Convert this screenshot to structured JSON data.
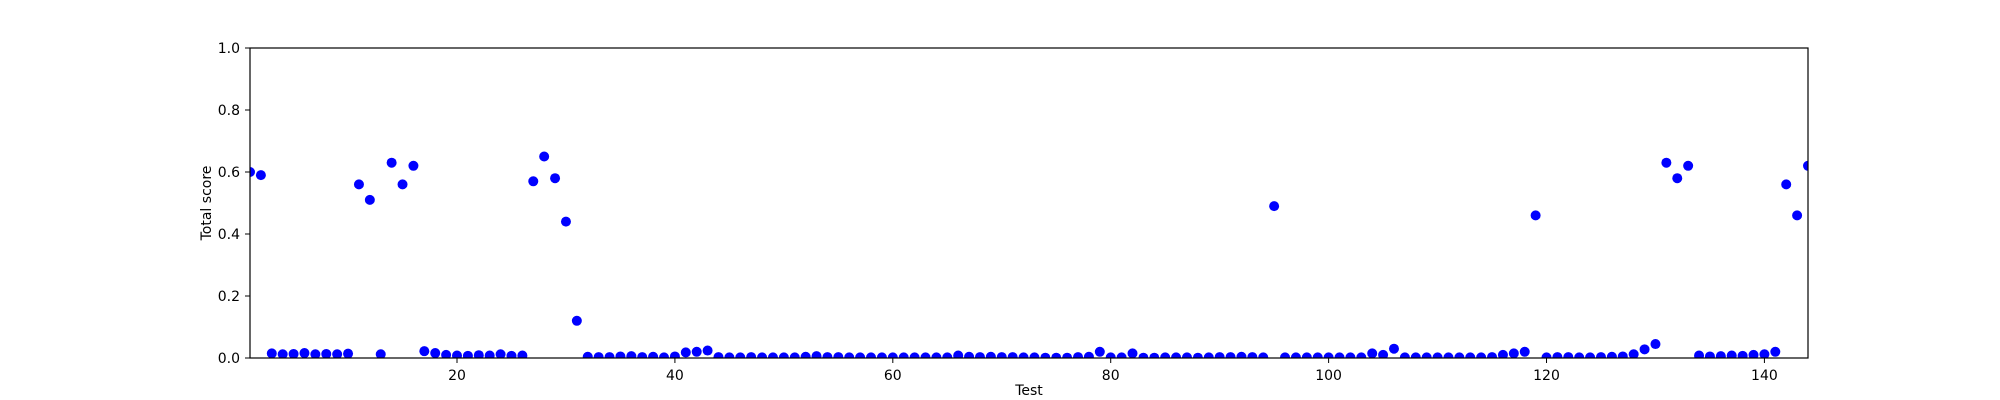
{
  "chart_data": {
    "type": "scatter",
    "title": "",
    "xlabel": "Test",
    "ylabel": "Total score",
    "xlim": [
      1,
      144
    ],
    "ylim": [
      0.0,
      1.0
    ],
    "x_ticks": [
      20,
      40,
      60,
      80,
      100,
      120,
      140
    ],
    "y_ticks": [
      0.0,
      0.2,
      0.4,
      0.6,
      0.8,
      1.0
    ],
    "y_tick_labels": [
      "0.0",
      "0.2",
      "0.4",
      "0.6",
      "0.8",
      "1.0"
    ],
    "grid": false,
    "legend": "none",
    "marker_color": "#0000ff",
    "series": [
      {
        "x": [
          1,
          2,
          3,
          4,
          5,
          6,
          7,
          8,
          9,
          10,
          11,
          12,
          13,
          14,
          15,
          16,
          17,
          18,
          19,
          20,
          21,
          22,
          23,
          24,
          25,
          26,
          27,
          28,
          29,
          30,
          31,
          32,
          33,
          34,
          35,
          36,
          37,
          38,
          39,
          40,
          41,
          42,
          43,
          44,
          45,
          46,
          47,
          48,
          49,
          50,
          51,
          52,
          53,
          54,
          55,
          56,
          57,
          58,
          59,
          60,
          61,
          62,
          63,
          64,
          65,
          66,
          67,
          68,
          69,
          70,
          71,
          72,
          73,
          74,
          75,
          76,
          77,
          78,
          79,
          80,
          81,
          82,
          83,
          84,
          85,
          86,
          87,
          88,
          89,
          90,
          91,
          92,
          93,
          94,
          95,
          96,
          97,
          98,
          99,
          100,
          101,
          102,
          103,
          104,
          105,
          106,
          107,
          108,
          109,
          110,
          111,
          112,
          113,
          114,
          115,
          116,
          117,
          118,
          119,
          120,
          121,
          122,
          123,
          124,
          125,
          126,
          127,
          128,
          129,
          130,
          131,
          132,
          133,
          134,
          135,
          136,
          137,
          138,
          139,
          140,
          141,
          142,
          143,
          144
        ],
        "y": [
          0.6,
          0.59,
          0.015,
          0.012,
          0.013,
          0.016,
          0.012,
          0.013,
          0.012,
          0.014,
          0.56,
          0.51,
          0.012,
          0.63,
          0.56,
          0.62,
          0.022,
          0.016,
          0.01,
          0.008,
          0.007,
          0.009,
          0.008,
          0.012,
          0.007,
          0.008,
          0.57,
          0.65,
          0.58,
          0.44,
          0.12,
          0.004,
          0.003,
          0.003,
          0.005,
          0.006,
          0.003,
          0.004,
          0.002,
          0.005,
          0.018,
          0.02,
          0.024,
          0.003,
          0.002,
          0.002,
          0.003,
          0.002,
          0.002,
          0.002,
          0.002,
          0.004,
          0.006,
          0.003,
          0.003,
          0.002,
          0.002,
          0.002,
          0.002,
          0.002,
          0.002,
          0.002,
          0.002,
          0.002,
          0.002,
          0.008,
          0.004,
          0.003,
          0.004,
          0.003,
          0.003,
          0.002,
          0.002,
          0.001,
          0.001,
          0.001,
          0.003,
          0.004,
          0.02,
          0.002,
          0.002,
          0.015,
          0.001,
          0.001,
          0.002,
          0.002,
          0.002,
          0.001,
          0.002,
          0.003,
          0.003,
          0.004,
          0.003,
          0.002,
          0.49,
          0.002,
          0.002,
          0.002,
          0.002,
          0.002,
          0.002,
          0.002,
          0.002,
          0.015,
          0.01,
          0.03,
          0.002,
          0.002,
          0.002,
          0.002,
          0.002,
          0.002,
          0.002,
          0.002,
          0.003,
          0.01,
          0.015,
          0.02,
          0.46,
          0.002,
          0.003,
          0.003,
          0.002,
          0.002,
          0.003,
          0.004,
          0.005,
          0.012,
          0.028,
          0.045,
          0.63,
          0.58,
          0.62,
          0.008,
          0.005,
          0.006,
          0.008,
          0.007,
          0.01,
          0.012,
          0.02,
          0.56,
          0.46,
          0.62
        ]
      }
    ]
  }
}
